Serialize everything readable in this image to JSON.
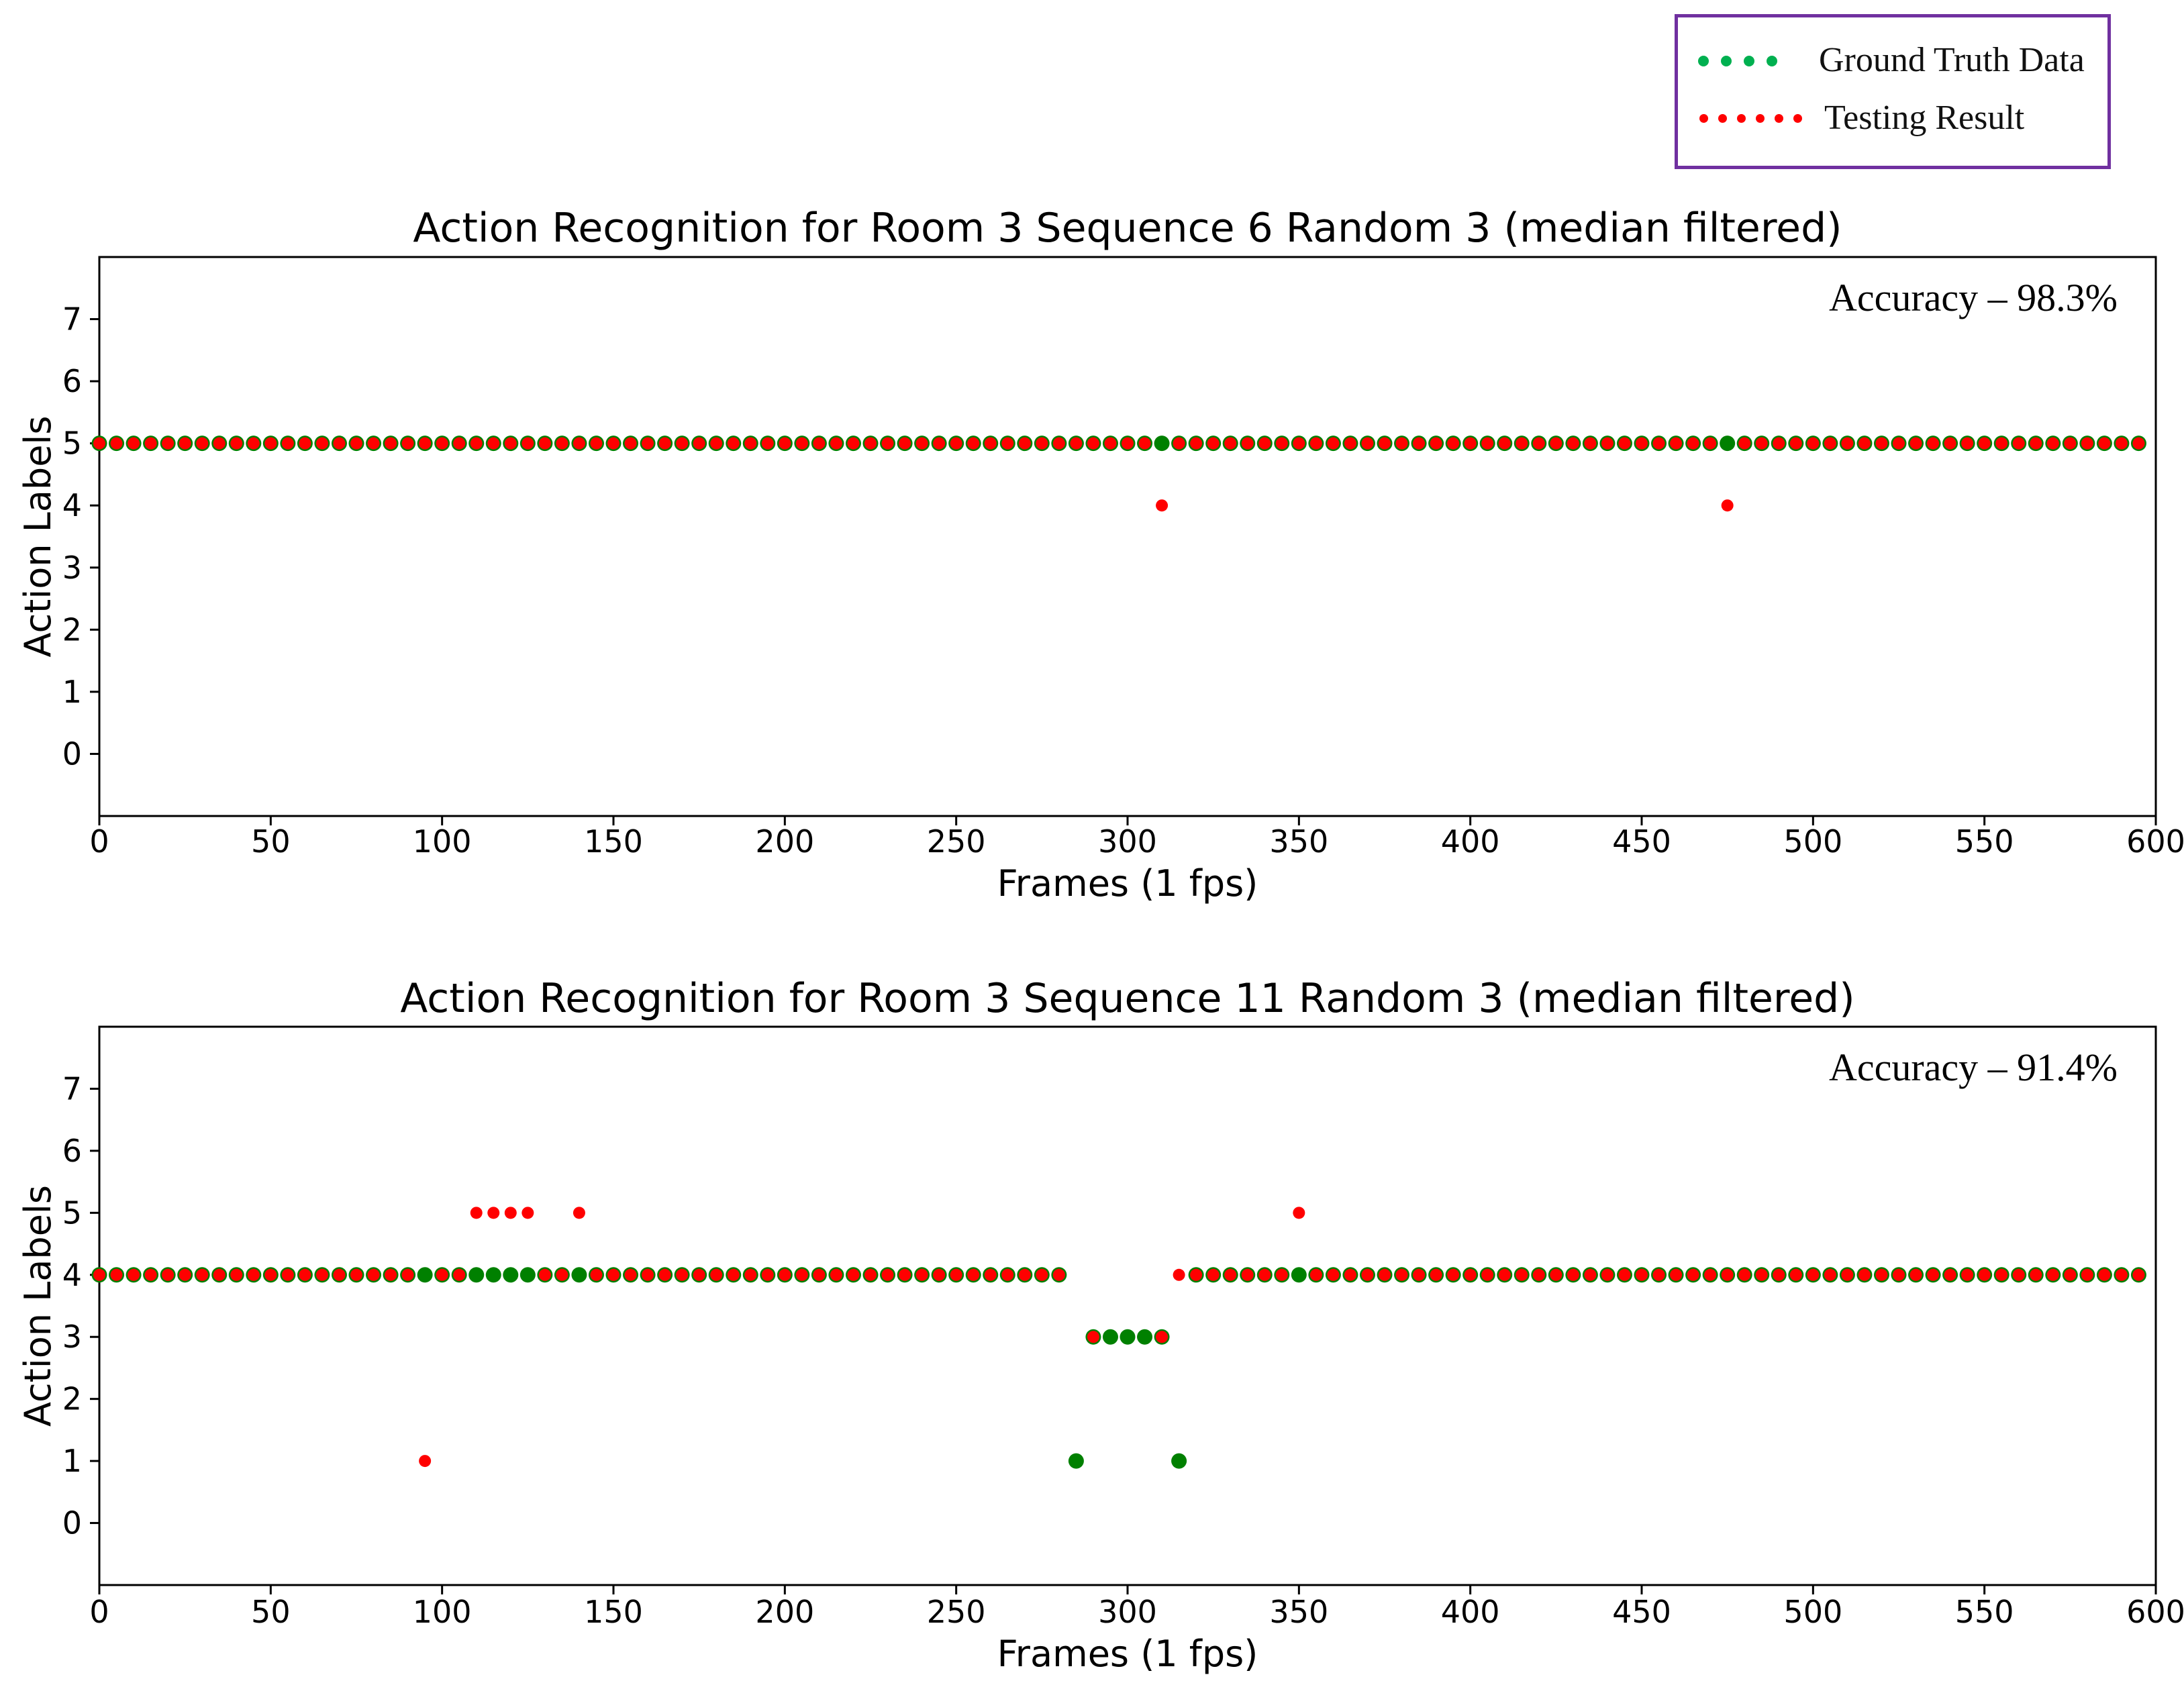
{
  "legend": {
    "items": [
      {
        "label": "Ground Truth Data",
        "color": "#00b050"
      },
      {
        "label": "Testing Result",
        "color": "#ff0000"
      }
    ]
  },
  "colors": {
    "ground_truth_marker": "#008000",
    "testing_marker": "#ff0000",
    "legend_border": "#7030a0"
  },
  "chart_data": [
    {
      "type": "scatter",
      "title": "Action Recognition for Room 3 Sequence 6 Random 3 (median filtered)",
      "xlabel": "Frames (1 fps)",
      "ylabel": "Action Labels",
      "annotation": "Accuracy – 98.3%",
      "xlim": [
        0,
        600
      ],
      "ylim": [
        -1,
        8
      ],
      "xticks": [
        0,
        50,
        100,
        150,
        200,
        250,
        300,
        350,
        400,
        450,
        500,
        550,
        600
      ],
      "yticks": [
        0,
        1,
        2,
        3,
        4,
        5,
        6,
        7
      ],
      "x_step": 5,
      "x_range": [
        0,
        595
      ],
      "series": [
        {
          "name": "Ground Truth Data",
          "default_y": 5,
          "overrides": {}
        },
        {
          "name": "Testing Result",
          "default_y": 5,
          "overrides": {
            "310": 4,
            "475": 4
          }
        }
      ]
    },
    {
      "type": "scatter",
      "title": "Action Recognition for Room 3 Sequence 11 Random 3 (median filtered)",
      "xlabel": "Frames (1 fps)",
      "ylabel": "Action Labels",
      "annotation": "Accuracy – 91.4%",
      "xlim": [
        0,
        600
      ],
      "ylim": [
        -1,
        8
      ],
      "xticks": [
        0,
        50,
        100,
        150,
        200,
        250,
        300,
        350,
        400,
        450,
        500,
        550,
        600
      ],
      "yticks": [
        0,
        1,
        2,
        3,
        4,
        5,
        6,
        7
      ],
      "x_step": 5,
      "x_range": [
        0,
        595
      ],
      "series": [
        {
          "name": "Ground Truth Data",
          "default_y": 4,
          "overrides": {
            "285": 1,
            "290": 3,
            "295": 3,
            "300": 3,
            "305": 3,
            "310": 3,
            "315": 1
          }
        },
        {
          "name": "Testing Result",
          "default_y": 4,
          "overrides": {
            "95": 1,
            "110": 5,
            "115": 5,
            "120": 5,
            "125": 5,
            "140": 5,
            "285": null,
            "290": 3,
            "295": null,
            "300": null,
            "305": null,
            "310": 3,
            "350": 5
          }
        }
      ]
    }
  ]
}
